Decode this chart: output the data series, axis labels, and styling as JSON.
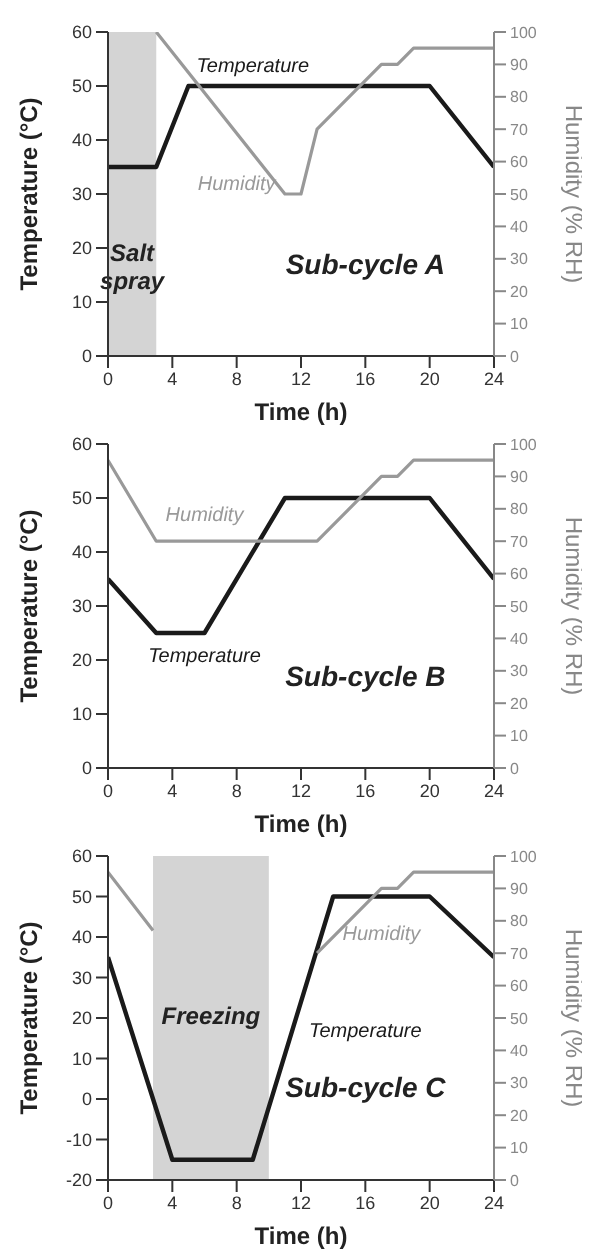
{
  "chart_data": [
    {
      "type": "line",
      "annotations": [
        "Sub-cycle A"
      ],
      "xlabel": "Time (h)",
      "ylabel": "Temperature (°C)",
      "y2label": "Humidity (% RH)",
      "xlim": [
        0,
        24
      ],
      "xticks": [
        0,
        4,
        8,
        12,
        16,
        20,
        24
      ],
      "ylim": [
        0,
        60
      ],
      "yticks": [
        0,
        10,
        20,
        30,
        40,
        50,
        60
      ],
      "y2lim": [
        0,
        100
      ],
      "y2ticks": [
        0,
        10,
        20,
        30,
        40,
        50,
        60,
        70,
        80,
        90,
        100
      ],
      "marker": "none",
      "bands": [
        {
          "axis": "x",
          "from": 0,
          "to": 3,
          "label": "Salt spray",
          "color": "#d4d4d4"
        }
      ],
      "series": [
        {
          "name": "Temperature",
          "color": "#1a1a1a",
          "x": [
            0,
            3,
            5,
            20,
            24
          ],
          "values": [
            35,
            35,
            50,
            50,
            35
          ]
        },
        {
          "name": "Humidity",
          "color": "#999999",
          "axis": "y2",
          "x": [
            3,
            11,
            12,
            13,
            17,
            18,
            19,
            24
          ],
          "values": [
            100,
            50,
            50,
            70,
            90,
            90,
            95,
            95
          ]
        }
      ]
    },
    {
      "type": "line",
      "annotations": [
        "Sub-cycle B"
      ],
      "xlabel": "Time (h)",
      "ylabel": "Temperature (°C)",
      "y2label": "Humidity (% RH)",
      "xlim": [
        0,
        24
      ],
      "xticks": [
        0,
        4,
        8,
        12,
        16,
        20,
        24
      ],
      "ylim": [
        0,
        60
      ],
      "yticks": [
        0,
        10,
        20,
        30,
        40,
        50,
        60
      ],
      "y2lim": [
        0,
        100
      ],
      "y2ticks": [
        0,
        10,
        20,
        30,
        40,
        50,
        60,
        70,
        80,
        90,
        100
      ],
      "marker": "none",
      "series": [
        {
          "name": "Temperature",
          "color": "#1a1a1a",
          "x": [
            0,
            3,
            6,
            11,
            20,
            24
          ],
          "values": [
            35,
            25,
            25,
            50,
            50,
            35
          ]
        },
        {
          "name": "Humidity",
          "color": "#999999",
          "axis": "y2",
          "x": [
            0,
            3,
            13,
            17,
            18,
            19,
            24
          ],
          "values": [
            95,
            70,
            70,
            90,
            90,
            95,
            95
          ]
        }
      ]
    },
    {
      "type": "line",
      "annotations": [
        "Sub-cycle C"
      ],
      "xlabel": "Time (h)",
      "ylabel": "Temperature (°C)",
      "y2label": "Humidity (% RH)",
      "xlim": [
        0,
        24
      ],
      "xticks": [
        0,
        4,
        8,
        12,
        16,
        20,
        24
      ],
      "ylim": [
        -20,
        60
      ],
      "yticks": [
        -20,
        -10,
        0,
        10,
        20,
        30,
        40,
        50,
        60
      ],
      "y2lim": [
        0,
        100
      ],
      "y2ticks": [
        0,
        10,
        20,
        30,
        40,
        50,
        60,
        70,
        80,
        90,
        100
      ],
      "marker": "none",
      "bands": [
        {
          "axis": "x",
          "from": 2.8,
          "to": 10,
          "label": "Freezing",
          "color": "#d4d4d4"
        }
      ],
      "series": [
        {
          "name": "Temperature",
          "color": "#1a1a1a",
          "x": [
            0,
            4,
            9,
            14,
            20,
            24
          ],
          "values": [
            35,
            -15,
            -15,
            50,
            50,
            35
          ]
        },
        {
          "name": "Humidity",
          "color": "#999999",
          "axis": "y2",
          "x": [
            0,
            2.8,
            10,
            13,
            17,
            18,
            19,
            24
          ],
          "values": [
            95,
            77,
            null,
            70,
            90,
            90,
            95,
            95
          ]
        }
      ]
    }
  ]
}
